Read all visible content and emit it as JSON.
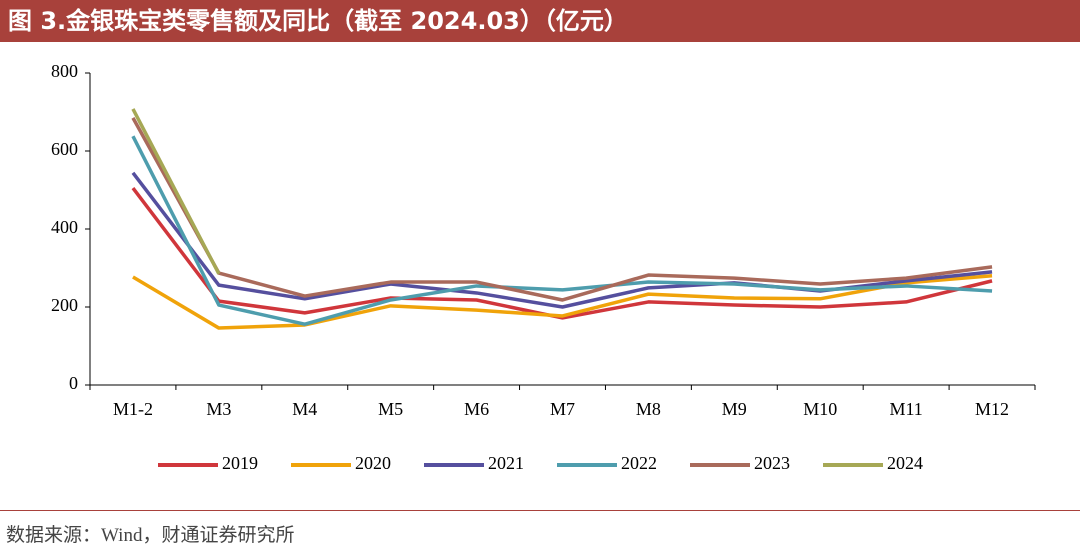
{
  "chart_data": {
    "type": "line",
    "title": "图 3.金银珠宝类零售额及同比（截至 2024.03）（亿元）",
    "source": "数据来源：Wind，财通证券研究所",
    "categories": [
      "M1-2",
      "M3",
      "M4",
      "M5",
      "M6",
      "M7",
      "M8",
      "M9",
      "M10",
      "M11",
      "M12"
    ],
    "series": [
      {
        "name": "2019",
        "color": "#d0363b",
        "values": [
          505,
          215,
          185,
          223,
          218,
          172,
          213,
          205,
          200,
          213,
          267
        ]
      },
      {
        "name": "2020",
        "color": "#f0a30a",
        "values": [
          277,
          146,
          154,
          203,
          192,
          177,
          233,
          223,
          221,
          262,
          280
        ]
      },
      {
        "name": "2021",
        "color": "#554f9e",
        "values": [
          544,
          256,
          221,
          259,
          236,
          200,
          249,
          262,
          241,
          267,
          290
        ]
      },
      {
        "name": "2022",
        "color": "#4e9dad",
        "values": [
          638,
          205,
          156,
          218,
          254,
          244,
          264,
          259,
          244,
          254,
          241
        ]
      },
      {
        "name": "2023",
        "color": "#a96a5b",
        "values": [
          685,
          287,
          228,
          264,
          264,
          218,
          282,
          274,
          259,
          274,
          303
        ]
      },
      {
        "name": "2024",
        "color": "#a6a855",
        "values": [
          708,
          285,
          null,
          null,
          null,
          null,
          null,
          null,
          null,
          null,
          null
        ]
      }
    ],
    "ylim": [
      0,
      800
    ],
    "yticks": [
      0,
      200,
      400,
      600,
      800
    ],
    "grid": false,
    "legend": "bottom"
  }
}
